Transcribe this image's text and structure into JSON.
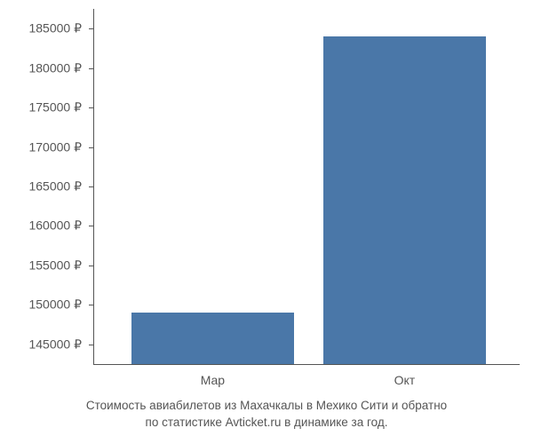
{
  "chart": {
    "type": "bar",
    "y_axis": {
      "ticks": [
        145000,
        150000,
        155000,
        160000,
        165000,
        170000,
        175000,
        180000,
        185000
      ],
      "ymin": 142500,
      "ymax": 187500,
      "currency_suffix": " ₽",
      "label_color": "#555555",
      "label_fontsize": 14
    },
    "x_axis": {
      "categories": [
        "Мар",
        "Окт"
      ],
      "label_color": "#555555",
      "label_fontsize": 14
    },
    "bars": [
      {
        "category": "Мар",
        "value": 149000,
        "color": "#4a77a8",
        "center_x_pct": 28,
        "width_pct": 38
      },
      {
        "category": "Окт",
        "value": 184000,
        "color": "#4a77a8",
        "center_x_pct": 73,
        "width_pct": 38
      }
    ],
    "background_color": "#ffffff",
    "axis_color": "#555555",
    "caption_line1": "Стоимость авиабилетов из Махачкалы в Мехико Сити и обратно",
    "caption_line2": "по статистике Avticket.ru в динамике за год.",
    "caption_color": "#555555",
    "caption_fontsize": 13.5
  }
}
